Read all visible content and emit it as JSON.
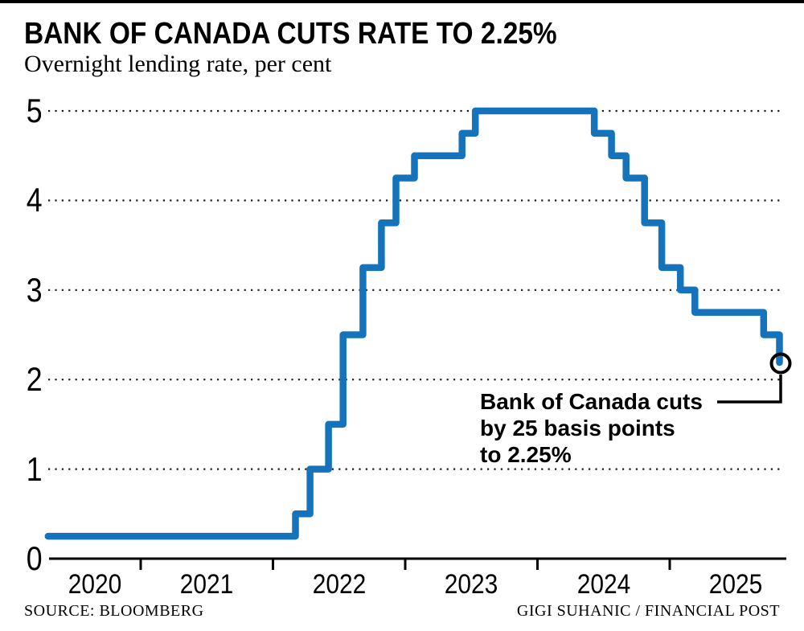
{
  "page": {
    "title": "BANK OF CANADA CUTS RATE TO 2.25%",
    "subtitle": "Overnight lending rate, per cent"
  },
  "annotation": {
    "line1": "Bank of Canada cuts",
    "line2": "by 25 basis points",
    "line3": "to 2.25%"
  },
  "footer": {
    "source": "SOURCE: BLOOMBERG",
    "credit": "GIGI SUHANIC / FINANCIAL POST"
  },
  "colors": {
    "line": "#1473BB",
    "grid": "#1a1a1a",
    "axis": "#000000",
    "connector": "#000000",
    "topbar": "#000000"
  },
  "chart_data": {
    "type": "line",
    "style": "step-after",
    "title": "BANK OF CANADA CUTS RATE TO 2.25%",
    "subtitle": "Overnight lending rate, per cent",
    "xlabel": "",
    "ylabel": "Overnight lending rate, per cent",
    "ylim": [
      0,
      5
    ],
    "yticks": [
      0,
      1,
      2,
      3,
      4,
      5
    ],
    "grid": "horizontal-dotted",
    "legend": "none",
    "x_year_labels": [
      "2020",
      "2021",
      "2022",
      "2023",
      "2024",
      "2025"
    ],
    "x_boundary_ticks": [
      2021,
      2022,
      2023,
      2024,
      2025
    ],
    "x_range": [
      2020.3,
      2025.88
    ],
    "series_name": "Bank of Canada overnight lending rate (%)",
    "points": [
      [
        2020.3,
        0.25
      ],
      [
        2022.17,
        0.5
      ],
      [
        2022.28,
        1.0
      ],
      [
        2022.42,
        1.5
      ],
      [
        2022.53,
        2.5
      ],
      [
        2022.68,
        3.25
      ],
      [
        2022.82,
        3.75
      ],
      [
        2022.93,
        4.25
      ],
      [
        2023.07,
        4.5
      ],
      [
        2023.43,
        4.75
      ],
      [
        2023.53,
        5.0
      ],
      [
        2024.43,
        4.75
      ],
      [
        2024.56,
        4.5
      ],
      [
        2024.67,
        4.25
      ],
      [
        2024.81,
        3.75
      ],
      [
        2024.94,
        3.25
      ],
      [
        2025.08,
        3.0
      ],
      [
        2025.19,
        2.75
      ],
      [
        2025.71,
        2.5
      ],
      [
        2025.83,
        2.25
      ]
    ],
    "end_marker": {
      "x": 2025.83,
      "value": 2.25,
      "shape": "open-circle"
    },
    "annotation_text": "Bank of Canada cuts by 25 basis points to 2.25%"
  }
}
